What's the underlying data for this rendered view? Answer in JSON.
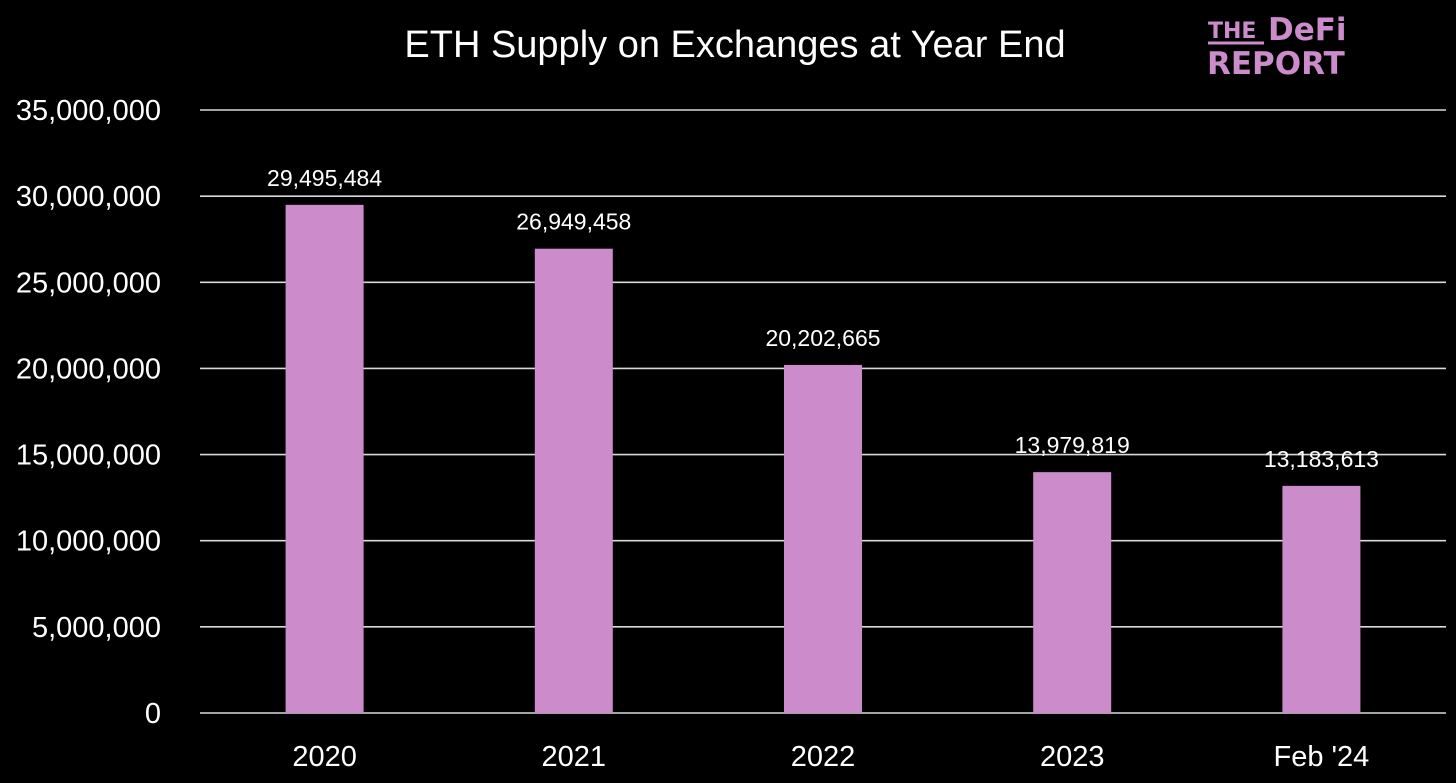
{
  "chart_data": {
    "type": "bar",
    "title": "ETH Supply on Exchanges at Year End",
    "categories": [
      "2020",
      "2021",
      "2022",
      "2023",
      "Feb '24"
    ],
    "values": [
      29495484,
      26949458,
      20202665,
      13979819,
      13183613
    ],
    "data_labels": [
      "29,495,484",
      "26,949,458",
      "20,202,665",
      "13,979,819",
      "13,183,613"
    ],
    "y_ticks": [
      0,
      5000000,
      10000000,
      15000000,
      20000000,
      25000000,
      30000000,
      35000000
    ],
    "y_tick_labels": [
      "0",
      "5,000,000",
      "10,000,000",
      "15,000,000",
      "20,000,000",
      "25,000,000",
      "30,000,000",
      "35,000,000"
    ],
    "ylim": [
      0,
      35000000
    ],
    "xlabel": "",
    "ylabel": "",
    "grid": true,
    "legend": "none"
  },
  "branding": {
    "logo_line1_the": "THE",
    "logo_line1_defi": "DeFi",
    "logo_line2": "REPORT"
  },
  "colors": {
    "background": "#000000",
    "bar": "#cc8ccc",
    "text": "#ffffff",
    "grid": "#d9d9d9",
    "logo": "#cc8ccc"
  }
}
